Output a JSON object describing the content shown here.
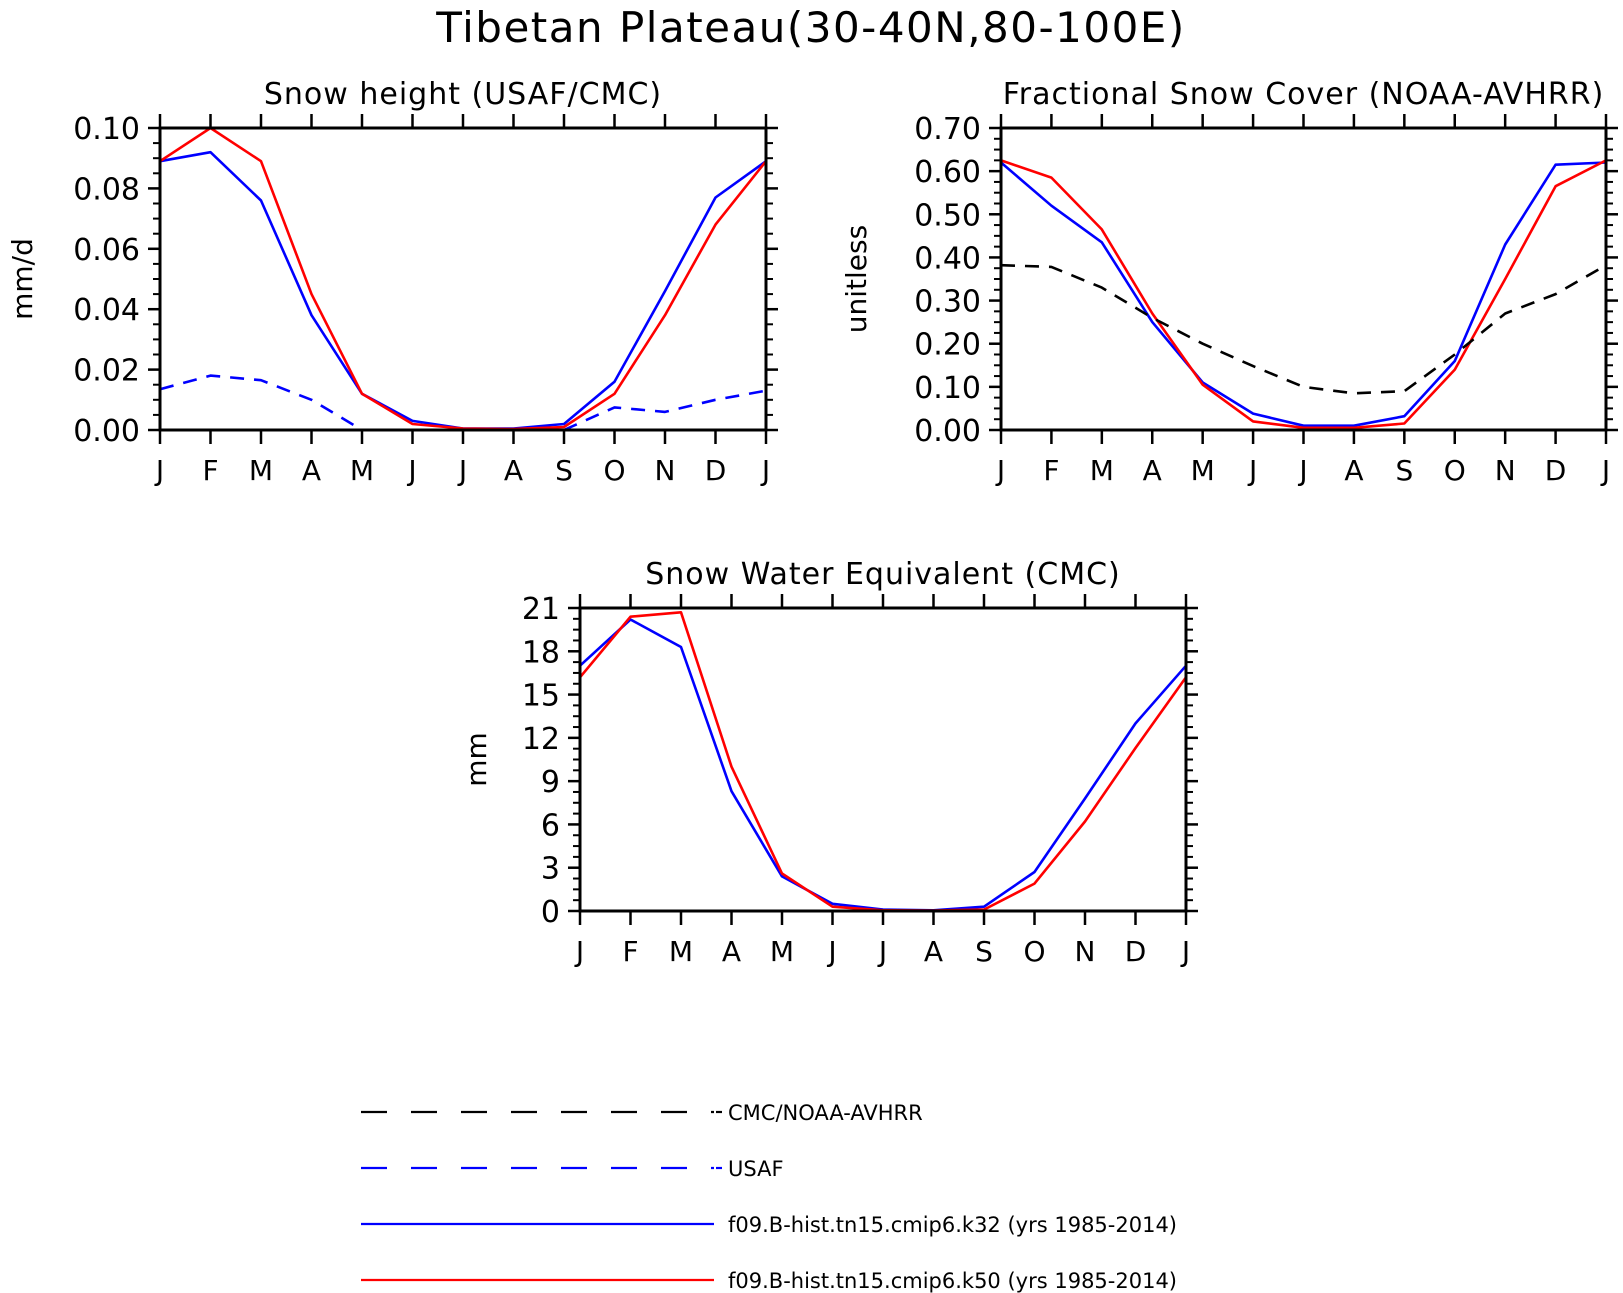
{
  "figure": {
    "title": "Tibetan Plateau(30-40N,80-100E)"
  },
  "months": [
    "J",
    "F",
    "M",
    "A",
    "M",
    "J",
    "J",
    "A",
    "S",
    "O",
    "N",
    "D",
    "J"
  ],
  "colors": {
    "k32": "#0000ff",
    "k50": "#ff0000",
    "obs_black": "#000000",
    "obs_blue": "#0000ff"
  },
  "legend": [
    {
      "label": "CMC/NOAA-AVHRR",
      "color": "#000000",
      "style": "long-dash"
    },
    {
      "label": "USAF",
      "color": "#0000ff",
      "style": "long-dash"
    },
    {
      "label": "f09.B-hist.tn15.cmip6.k32 (yrs 1985-2014)",
      "color": "#0000ff",
      "style": "solid"
    },
    {
      "label": "f09.B-hist.tn15.cmip6.k50 (yrs 1985-2014)",
      "color": "#ff0000",
      "style": "solid"
    }
  ],
  "chart_data": [
    {
      "type": "line",
      "title": "Snow height (USAF/CMC)",
      "ylabel": "mm/d",
      "xlabel": "",
      "ylim": [
        0,
        0.1
      ],
      "yticks": [
        "0.00",
        "0.02",
        "0.04",
        "0.06",
        "0.08",
        "0.10"
      ],
      "categories": [
        "J",
        "F",
        "M",
        "A",
        "M",
        "J",
        "J",
        "A",
        "S",
        "O",
        "N",
        "D",
        "J"
      ],
      "series": [
        {
          "name": "f09.B-hist.tn15.cmip6.k32 (yrs 1985-2014)",
          "color": "#0000ff",
          "dash": false,
          "values": [
            0.089,
            0.092,
            0.076,
            0.038,
            0.012,
            0.003,
            0.0005,
            0.0005,
            0.002,
            0.016,
            0.046,
            0.077,
            0.089
          ]
        },
        {
          "name": "f09.B-hist.tn15.cmip6.k50 (yrs 1985-2014)",
          "color": "#ff0000",
          "dash": false,
          "values": [
            0.089,
            0.1,
            0.089,
            0.045,
            0.012,
            0.002,
            0.0005,
            0.0003,
            0.001,
            0.012,
            0.038,
            0.068,
            0.089
          ]
        },
        {
          "name": "USAF",
          "color": "#0000ff",
          "dash": true,
          "values": [
            0.0135,
            0.018,
            0.0165,
            0.01,
            0.0,
            null,
            null,
            null,
            0.0,
            0.0075,
            0.006,
            0.01,
            0.013
          ]
        },
        {
          "name": "CMC/NOAA-AVHRR",
          "color": "#000000",
          "dash": true,
          "values": [
            0,
            0,
            0,
            0,
            0,
            0,
            0,
            0,
            0,
            0,
            0,
            0,
            0
          ]
        }
      ]
    },
    {
      "type": "line",
      "title": "Fractional Snow Cover (NOAA-AVHRR)",
      "ylabel": "unitless",
      "xlabel": "",
      "ylim": [
        0,
        0.7
      ],
      "yticks": [
        "0.00",
        "0.10",
        "0.20",
        "0.30",
        "0.40",
        "0.50",
        "0.60",
        "0.70"
      ],
      "categories": [
        "J",
        "F",
        "M",
        "A",
        "M",
        "J",
        "J",
        "A",
        "S",
        "O",
        "N",
        "D",
        "J"
      ],
      "series": [
        {
          "name": "f09.B-hist.tn15.cmip6.k32 (yrs 1985-2014)",
          "color": "#0000ff",
          "dash": false,
          "values": [
            0.62,
            0.52,
            0.435,
            0.25,
            0.11,
            0.038,
            0.01,
            0.01,
            0.032,
            0.16,
            0.43,
            0.615,
            0.62
          ]
        },
        {
          "name": "f09.B-hist.tn15.cmip6.k50 (yrs 1985-2014)",
          "color": "#ff0000",
          "dash": false,
          "values": [
            0.625,
            0.585,
            0.465,
            0.27,
            0.105,
            0.02,
            0.005,
            0.005,
            0.015,
            0.14,
            0.35,
            0.565,
            0.625
          ]
        },
        {
          "name": "CMC/NOAA-AVHRR",
          "color": "#000000",
          "dash": true,
          "values": [
            0.382,
            0.378,
            0.33,
            0.26,
            0.2,
            0.148,
            0.1,
            0.085,
            0.09,
            0.175,
            0.27,
            0.315,
            0.382
          ]
        }
      ]
    },
    {
      "type": "line",
      "title": "Snow Water Equivalent (CMC)",
      "ylabel": "mm",
      "xlabel": "",
      "ylim": [
        0,
        21
      ],
      "yticks": [
        "0",
        "3",
        "6",
        "9",
        "12",
        "15",
        "18",
        "21"
      ],
      "categories": [
        "J",
        "F",
        "M",
        "A",
        "M",
        "J",
        "J",
        "A",
        "S",
        "O",
        "N",
        "D",
        "J"
      ],
      "series": [
        {
          "name": "f09.B-hist.tn15.cmip6.k32 (yrs 1985-2014)",
          "color": "#0000ff",
          "dash": false,
          "values": [
            17.0,
            20.2,
            18.3,
            8.3,
            2.4,
            0.5,
            0.1,
            0.05,
            0.3,
            2.7,
            7.8,
            13.0,
            17.0
          ]
        },
        {
          "name": "f09.B-hist.tn15.cmip6.k50 (yrs 1985-2014)",
          "color": "#ff0000",
          "dash": false,
          "values": [
            16.2,
            20.4,
            20.7,
            10.0,
            2.6,
            0.3,
            0.05,
            0.03,
            0.1,
            1.9,
            6.2,
            11.3,
            16.2
          ]
        },
        {
          "name": "CMC/NOAA-AVHRR",
          "color": "#000000",
          "dash": true,
          "values": [
            0,
            0,
            0,
            0,
            0,
            0,
            0,
            0,
            0,
            0,
            0,
            0,
            0
          ]
        }
      ]
    }
  ]
}
